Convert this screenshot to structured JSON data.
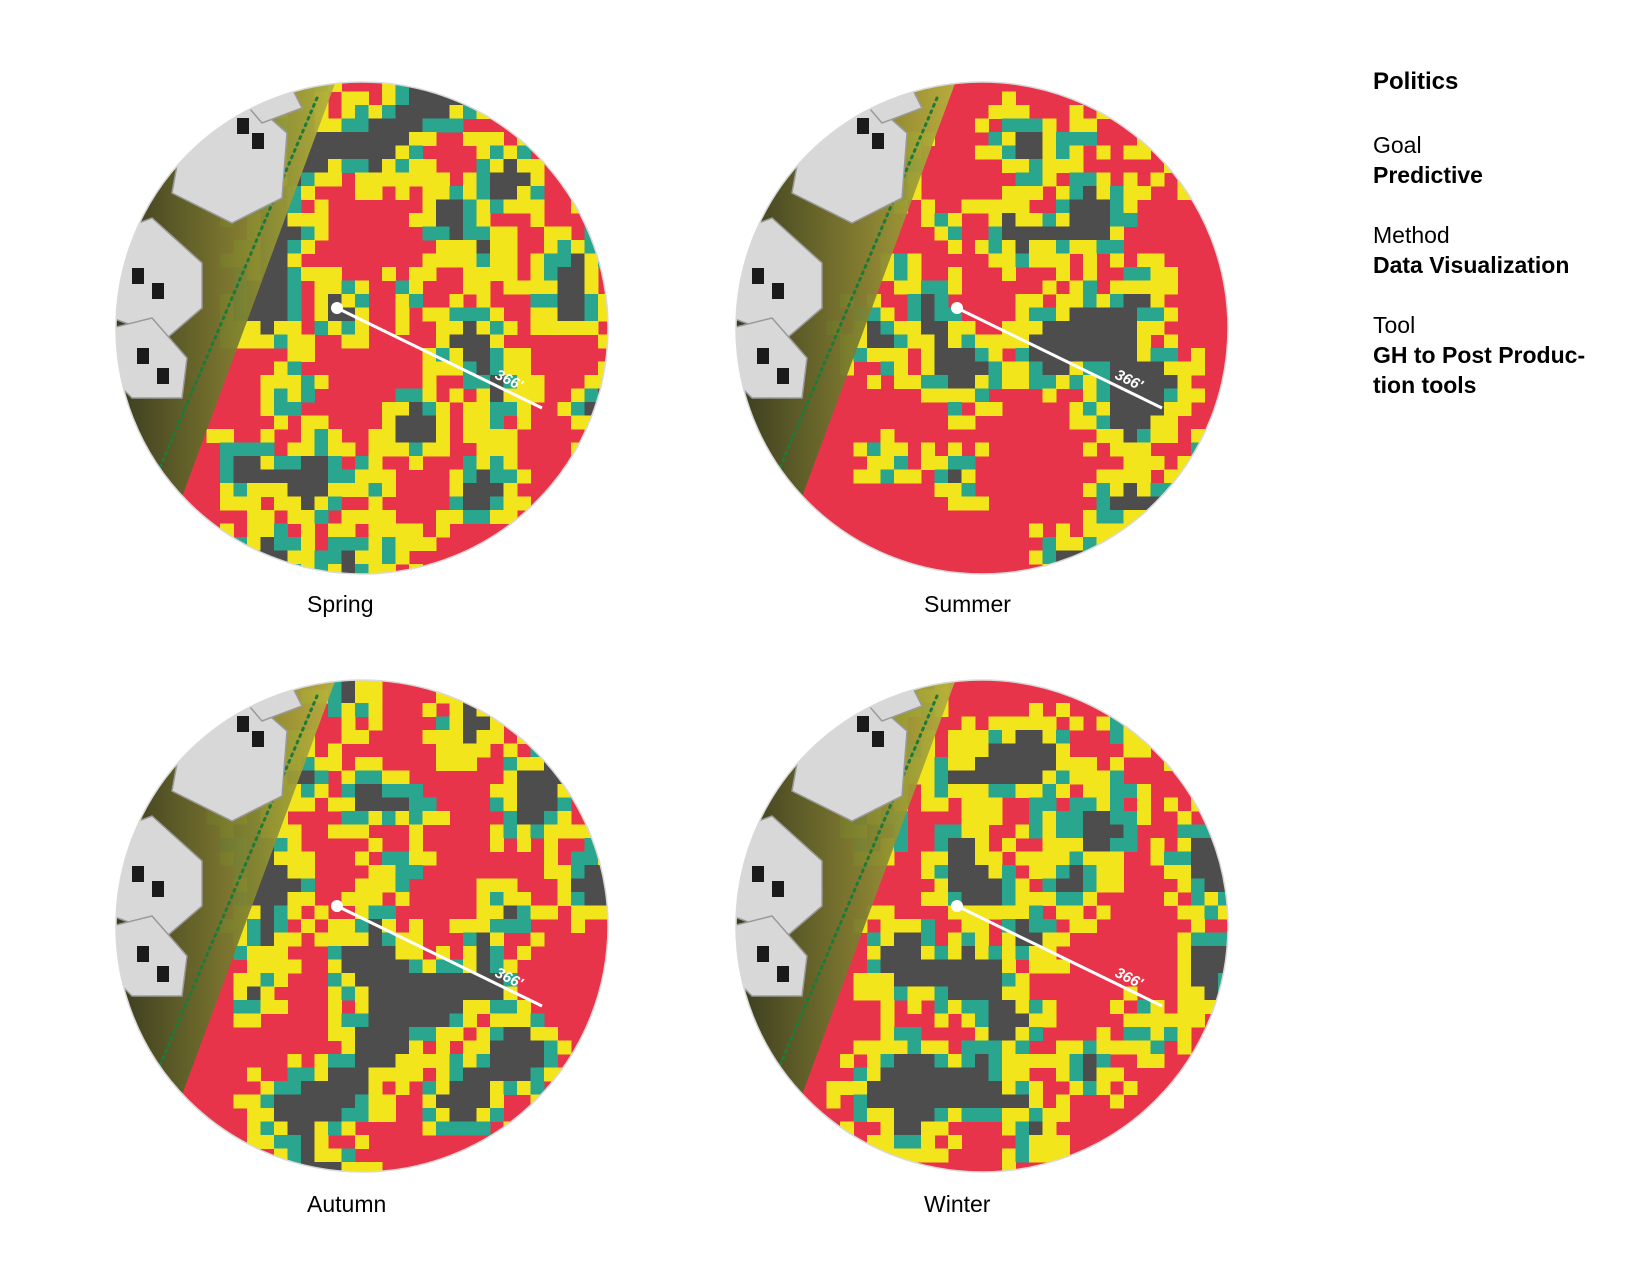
{
  "sidebar": {
    "title": "Politics",
    "goal_label": "Goal",
    "goal_value": "Predictive",
    "method_label": "Method",
    "method_value": "Data Visualization",
    "tool_label": "Tool",
    "tool_value_line1": "GH to Post Produc-",
    "tool_value_line2": "tion tools"
  },
  "maps": [
    {
      "season": "Spring",
      "radius_label": "366'"
    },
    {
      "season": "Summer",
      "radius_label": "366'"
    },
    {
      "season": "Autumn",
      "radius_label": "366'"
    },
    {
      "season": "Winter",
      "radius_label": "366'"
    }
  ],
  "legend_colors": {
    "background": "#e8344a",
    "obstacle": "#4d4d4d",
    "edge": "#f2e51c",
    "core": "#2aa58e",
    "building": "#d8d8d8",
    "boundary": "#1f7a3a"
  }
}
